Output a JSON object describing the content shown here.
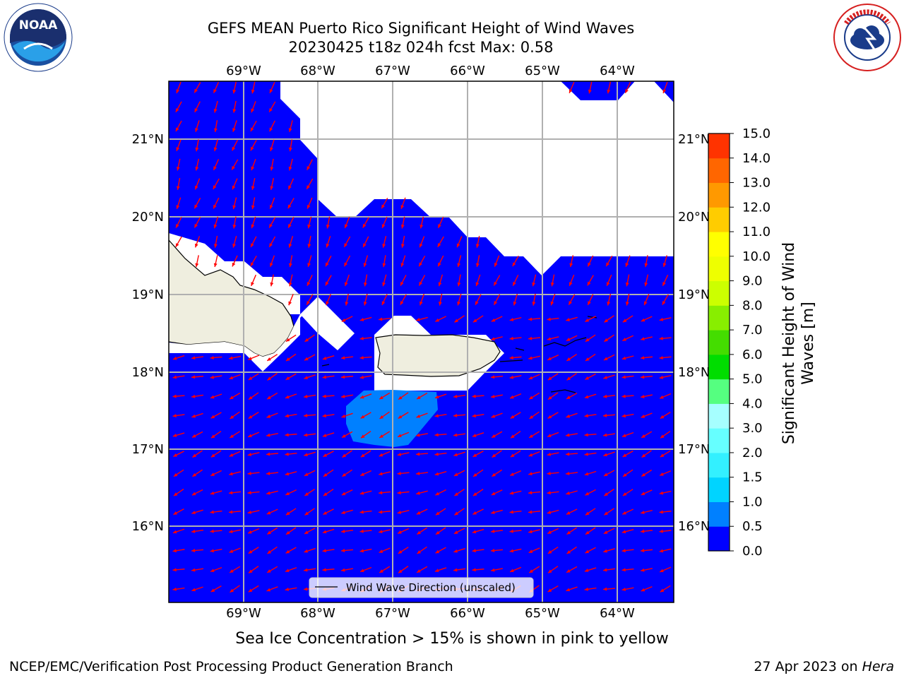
{
  "title_line1": "GEFS MEAN Puerto Rico Significant Height of Wind Waves",
  "title_line2": "20230425 t18z 024h fcst   Max: 0.58",
  "lon_labels": [
    "69°W",
    "68°W",
    "67°W",
    "66°W",
    "65°W",
    "64°W"
  ],
  "lat_labels": [
    "21°N",
    "20°N",
    "19°N",
    "18°N",
    "17°N",
    "16°N"
  ],
  "legend_label": "Wind Wave Direction (unscaled)",
  "colorbar": {
    "label_line1": "Significant Height of Wind",
    "label_line2": "Waves [m]",
    "ticks": [
      "0.0",
      "0.5",
      "1.0",
      "1.5",
      "2.0",
      "3.0",
      "4.0",
      "5.0",
      "6.0",
      "7.0",
      "8.0",
      "9.0",
      "10.0",
      "11.0",
      "12.0",
      "13.0",
      "14.0",
      "15.0"
    ],
    "colors": [
      "#0000ff",
      "#0080ff",
      "#00d4ff",
      "#33f0ff",
      "#66ffff",
      "#a6ffff",
      "#55ff80",
      "#00dd00",
      "#44dd00",
      "#88ee00",
      "#ccff00",
      "#eeff00",
      "#ffff00",
      "#ffcc00",
      "#ff9900",
      "#ff6600",
      "#ff3300",
      "#ff0000"
    ]
  },
  "sea_ice_note": "Sea Ice Concentration > 15% is shown in pink to yellow",
  "footer_left": "NCEP/EMC/Verification Post Processing Product Generation Branch",
  "footer_right_prefix": "27 Apr 2023 on ",
  "footer_right_host": "Hera",
  "logos": {
    "left": "NOAA",
    "right": "NATIONAL WEATHER SERVICE"
  },
  "colors": {
    "ocean": "#0000ff",
    "contour_05": "#0080ff",
    "land": "#efeedf",
    "arrow": "#ff0000",
    "grid": "#b0b0b0"
  }
}
